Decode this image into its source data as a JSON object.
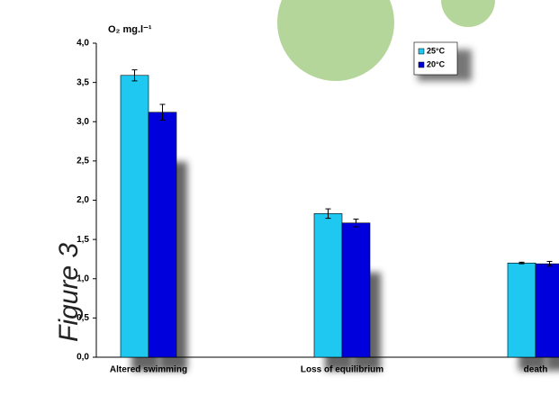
{
  "chart_data": {
    "type": "bar",
    "ylabel": "O₂ mg.l⁻¹",
    "side_label": "Figure 3",
    "categories": [
      "Altered swimming",
      "Loss of equilibrium",
      "death"
    ],
    "series": [
      {
        "name": "25°C",
        "color": "#1ec8f0",
        "values": [
          3.59,
          1.83,
          1.2
        ],
        "errors": [
          0.07,
          0.06,
          0.01
        ]
      },
      {
        "name": "20°C",
        "color": "#0000dd",
        "values": [
          3.12,
          1.71,
          1.19
        ],
        "errors": [
          0.1,
          0.05,
          0.03
        ]
      }
    ],
    "ylim": [
      0,
      4
    ],
    "yticks": [
      {
        "value": 0,
        "label": "0,0"
      },
      {
        "value": 0.5,
        "label": "0,5"
      },
      {
        "value": 1,
        "label": "1,0"
      },
      {
        "value": 1.5,
        "label": "1,5"
      },
      {
        "value": 2,
        "label": "2,0"
      },
      {
        "value": 2.5,
        "label": "2,5"
      },
      {
        "value": 3,
        "label": "3,0"
      },
      {
        "value": 3.5,
        "label": "3,5"
      },
      {
        "value": 4,
        "label": "4,0"
      }
    ]
  }
}
